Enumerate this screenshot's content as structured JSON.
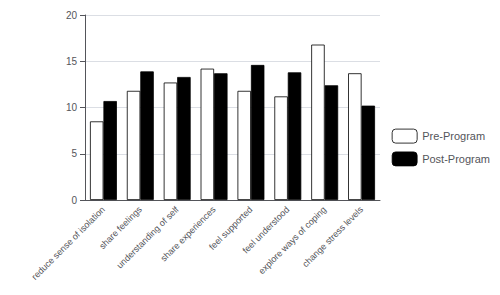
{
  "chart_data": {
    "type": "bar",
    "categories": [
      "reduce sense of isolation",
      "share feelings",
      "understanding of self",
      "share experiences",
      "feel supported",
      "feel understood",
      "explore ways of coping",
      "change stress levels"
    ],
    "series": [
      {
        "name": "Pre-Program",
        "color": "#ffffff",
        "values": [
          8.5,
          11.8,
          12.7,
          14.2,
          11.8,
          11.2,
          16.8,
          13.7
        ]
      },
      {
        "name": "Post-Program",
        "color": "#000000",
        "values": [
          10.7,
          13.9,
          13.3,
          13.7,
          14.6,
          13.8,
          12.4,
          10.2
        ]
      }
    ],
    "ylim": [
      0,
      20
    ],
    "yticks": [
      0,
      5,
      10,
      15,
      20
    ],
    "grid": true,
    "legend": "right"
  }
}
